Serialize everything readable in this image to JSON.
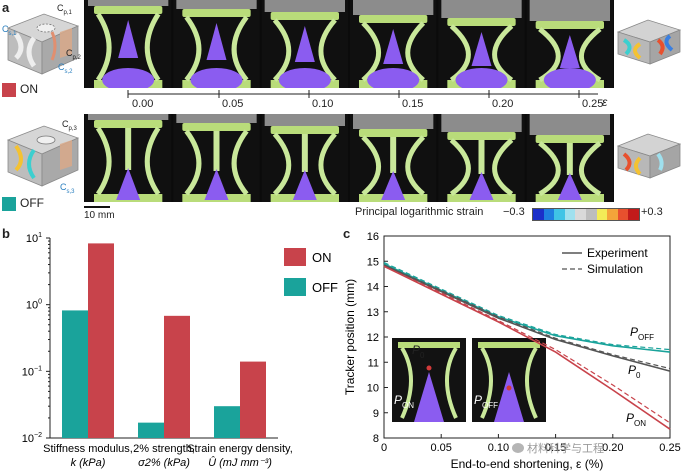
{
  "panel_a": {
    "label": "a",
    "on_label": "ON",
    "off_label": "OFF",
    "on_color": "#c8434b",
    "off_color": "#1aa39b",
    "callouts_on": [
      "C",
      "C",
      "C",
      "C"
    ],
    "callout_subs_on": [
      "p,1",
      "s,1",
      "p,2",
      "s,2"
    ],
    "callouts_off": [
      "C",
      "C"
    ],
    "callout_subs_off": [
      "p,3",
      "s,3"
    ],
    "strain_ticks": [
      "0.00",
      "0.05",
      "0.10",
      "0.15",
      "0.20",
      "0.25"
    ],
    "strain_symbol": "ε",
    "scale_bar": "10 mm",
    "colorbar_label": "Principal logarithmic strain",
    "colorbar_min": "−0.3",
    "colorbar_max": "+0.3",
    "colorbar_colors": [
      "#1b2fc9",
      "#1f7fe0",
      "#3fc4e6",
      "#9fe0ee",
      "#d9d9d9",
      "#bdbdbd",
      "#f3ec57",
      "#f4a53a",
      "#e8502e",
      "#c21a1a"
    ]
  },
  "panel_b": {
    "label": "b",
    "legend_on": "ON",
    "legend_off": "OFF",
    "y_ticks": [
      {
        "base": "10",
        "exp": "1"
      },
      {
        "base": "10",
        "exp": "0"
      },
      {
        "base": "10",
        "exp": "−1"
      },
      {
        "base": "10",
        "exp": "−2"
      }
    ],
    "categories": [
      {
        "line1": "Stiffness modulus,",
        "line2": "k (kPa)"
      },
      {
        "line1": "2% strength,",
        "line2": "σ2% (kPa)"
      },
      {
        "line1": "Strain energy density,",
        "line2": "Û (mJ mm⁻³)"
      }
    ]
  },
  "panel_c": {
    "label": "c",
    "legend": [
      "Experiment",
      "Simulation"
    ],
    "ylabel": "Tracker position (mm)",
    "xlabel": "End-to-end shortening, ε (%)",
    "y_ticks": [
      "16",
      "15",
      "14",
      "13",
      "12",
      "11",
      "10",
      "9",
      "8"
    ],
    "x_ticks": [
      "0",
      "0.05",
      "0.10",
      "0.15",
      "0.20",
      "0.25"
    ],
    "curve_labels": [
      {
        "main": "P",
        "sub": "OFF"
      },
      {
        "main": "P",
        "sub": "0"
      },
      {
        "main": "P",
        "sub": "ON"
      }
    ],
    "inset_labels": [
      {
        "main": "P",
        "sub": "0"
      },
      {
        "main": "P",
        "sub": "ON"
      },
      {
        "main": "P",
        "sub": "OFF"
      }
    ]
  },
  "watermark": "材料科学与工程",
  "chart_data": [
    {
      "type": "bar",
      "title": "",
      "categories": [
        "Stiffness modulus, k (kPa)",
        "2% strength, σ2% (kPa)",
        "Strain energy density, Û (mJ mm⁻³)"
      ],
      "series": [
        {
          "name": "ON",
          "color": "#c8434b",
          "values": [
            8.3,
            0.68,
            0.14
          ]
        },
        {
          "name": "OFF",
          "color": "#1aa39b",
          "values": [
            0.82,
            0.017,
            0.03
          ]
        }
      ],
      "ylabel": "",
      "yscale": "log",
      "ylim": [
        0.01,
        10
      ],
      "legend": "right"
    },
    {
      "type": "line",
      "title": "",
      "xlabel": "End-to-end shortening, ε (%)",
      "ylabel": "Tracker position (mm)",
      "xlim": [
        0,
        0.25
      ],
      "ylim": [
        8,
        16
      ],
      "legend": "top-right",
      "series": [
        {
          "name": "P_OFF experiment",
          "color": "#1aa39b",
          "dash": false,
          "x": [
            0,
            0.05,
            0.1,
            0.15,
            0.2,
            0.25
          ],
          "y": [
            14.9,
            13.85,
            12.8,
            12.05,
            11.65,
            11.4
          ]
        },
        {
          "name": "P_OFF simulation",
          "color": "#1aa39b",
          "dash": true,
          "x": [
            0,
            0.05,
            0.1,
            0.15,
            0.2,
            0.25
          ],
          "y": [
            14.95,
            13.9,
            12.85,
            12.1,
            11.7,
            11.5
          ]
        },
        {
          "name": "P_0 experiment",
          "color": "#555555",
          "dash": false,
          "x": [
            0,
            0.05,
            0.1,
            0.15,
            0.2,
            0.25
          ],
          "y": [
            14.85,
            13.8,
            12.75,
            11.9,
            11.25,
            10.65
          ]
        },
        {
          "name": "P_0 simulation",
          "color": "#555555",
          "dash": true,
          "x": [
            0,
            0.05,
            0.1,
            0.15,
            0.2,
            0.25
          ],
          "y": [
            14.85,
            13.85,
            12.8,
            11.95,
            11.3,
            10.75
          ]
        },
        {
          "name": "P_ON experiment",
          "color": "#c8434b",
          "dash": false,
          "x": [
            0,
            0.05,
            0.1,
            0.15,
            0.2,
            0.25
          ],
          "y": [
            14.8,
            13.7,
            12.6,
            11.4,
            9.9,
            8.35
          ]
        },
        {
          "name": "P_ON simulation",
          "color": "#c8434b",
          "dash": true,
          "x": [
            0,
            0.05,
            0.1,
            0.15,
            0.2,
            0.25
          ],
          "y": [
            14.8,
            13.75,
            12.65,
            11.5,
            10.1,
            8.6
          ]
        }
      ]
    }
  ]
}
